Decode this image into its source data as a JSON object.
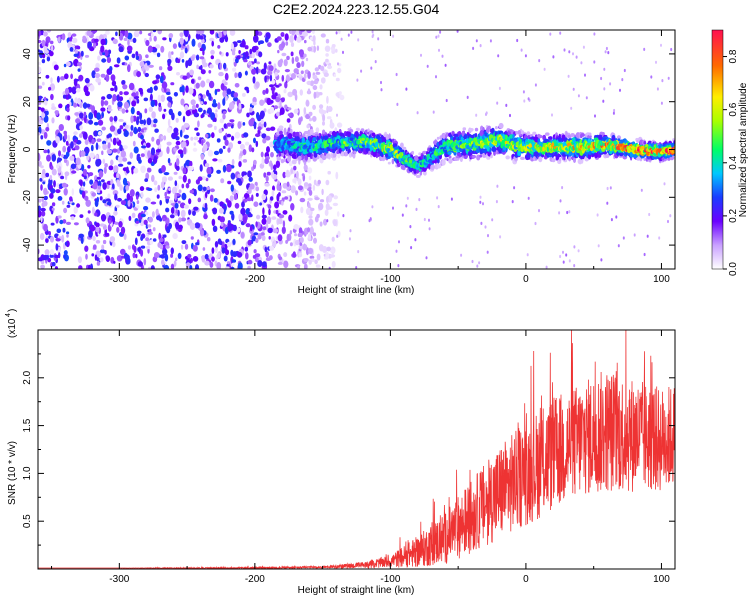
{
  "title": "C2E2.2024.223.12.55.G04",
  "chart_data": [
    {
      "type": "heatmap",
      "xlabel": "Height of straight line (km)",
      "ylabel": "Frequency (Hz)",
      "xlim": [
        -360,
        110
      ],
      "ylim": [
        -50,
        50
      ],
      "xticks": [
        -300,
        -200,
        -100,
        0,
        100
      ],
      "yticks": [
        -40,
        -20,
        0,
        20,
        40
      ],
      "colorbar": {
        "label": "Normalized spectral amplitude",
        "ticks": [
          0.0,
          0.2,
          0.4,
          0.6,
          0.8
        ],
        "range": [
          0,
          0.9
        ]
      },
      "ridge": {
        "x": [
          -180,
          -160,
          -140,
          -120,
          -110,
          -100,
          -90,
          -80,
          -70,
          -60,
          -50,
          -40,
          -30,
          -20,
          -10,
          0,
          20,
          40,
          60,
          80,
          100,
          110
        ],
        "y": [
          2,
          1,
          3,
          3,
          2,
          0,
          -4,
          -7,
          -3,
          1,
          2,
          2,
          3,
          4,
          2,
          1,
          1,
          1,
          2,
          0,
          -1,
          0
        ],
        "halfwidth_hz": [
          8,
          7,
          6,
          6,
          6,
          6,
          5,
          5,
          6,
          7,
          7,
          7,
          7,
          7,
          7,
          6,
          6,
          6,
          5,
          4,
          4,
          4
        ],
        "peak_amplitude": [
          0.35,
          0.45,
          0.5,
          0.55,
          0.55,
          0.6,
          0.55,
          0.45,
          0.45,
          0.5,
          0.55,
          0.55,
          0.6,
          0.6,
          0.6,
          0.6,
          0.65,
          0.7,
          0.75,
          0.85,
          0.85,
          0.85
        ]
      },
      "noise_region_x": [
        -360,
        -145
      ]
    },
    {
      "type": "line",
      "xlabel": "Height of straight line (km)",
      "ylabel": "SNR (10 * v/v)",
      "multiplier_label": "(x10",
      "multiplier_exp": "4",
      "xlim": [
        -360,
        110
      ],
      "ylim": [
        0,
        2.5
      ],
      "xticks": [
        -300,
        -200,
        -100,
        0,
        100
      ],
      "yticks": [
        0.5,
        1.0,
        1.5,
        2.0
      ],
      "series": [
        {
          "x": [
            -360,
            -300,
            -200,
            -150,
            -120,
            -100,
            -80,
            -60,
            -40,
            -20,
            0,
            20,
            40,
            60,
            80,
            100,
            110
          ],
          "y": [
            0.01,
            0.01,
            0.01,
            0.02,
            0.04,
            0.08,
            0.18,
            0.32,
            0.55,
            0.8,
            1.0,
            1.2,
            1.35,
            1.45,
            1.4,
            1.35,
            1.4
          ],
          "spread": [
            0.0,
            0.0,
            0.01,
            0.01,
            0.03,
            0.06,
            0.15,
            0.25,
            0.35,
            0.45,
            0.5,
            0.55,
            0.55,
            0.6,
            0.55,
            0.5,
            0.5
          ],
          "color": "#ee3333"
        }
      ]
    }
  ]
}
